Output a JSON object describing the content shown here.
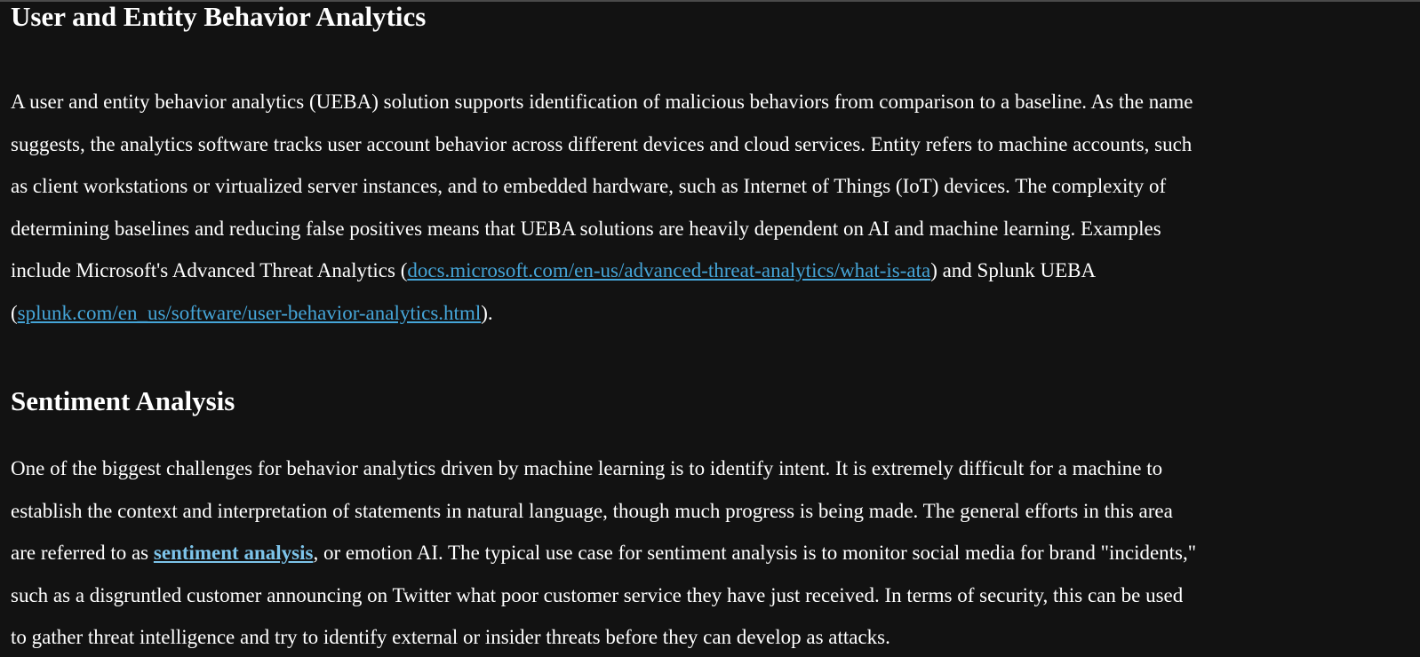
{
  "ueba": {
    "heading": "User and Entity Behavior Analytics",
    "lines": [
      "A user and entity behavior analytics (UEBA) solution supports identification of malicious behaviors from comparison to a baseline. As the name",
      "suggests, the analytics software tracks user account behavior across different devices and cloud services. Entity refers to machine accounts, such",
      "as client workstations or virtualized server instances, and to embedded hardware, such as Internet of Things (IoT) devices. The complexity of",
      "determining baselines and reducing false positives means that UEBA solutions are heavily dependent on AI and machine learning. Examples"
    ],
    "line5_pre": "include Microsoft's Advanced Threat Analytics (",
    "link_ata": "docs.microsoft.com/en-us/advanced-threat-analytics/what-is-ata",
    "line5_post": ") and Splunk UEBA",
    "line6_pre": "(",
    "link_splunk": "splunk.com/en_us/software/user-behavior-analytics.html",
    "line6_post": ")."
  },
  "sentiment": {
    "heading": "Sentiment Analysis",
    "lines": [
      "One of the biggest challenges for behavior analytics driven by machine learning is to identify intent. It is extremely difficult for a machine to",
      "establish the context and interpretation of statements in natural language, though much progress is being made. The general efforts in this area"
    ],
    "line3_pre": "are referred to as ",
    "term_link": "sentiment analysis",
    "line3_post": ", or emotion AI. The typical use case for sentiment analysis is to monitor social media for brand \"incidents,\"",
    "lines_after": [
      "such as a disgruntled customer announcing on Twitter what poor customer service they have just received. In terms of security, this can be used",
      "to gather threat intelligence and try to identify external or insider threats before they can develop as attacks."
    ]
  },
  "colors": {
    "background": "#121212",
    "text": "#ffffff",
    "link": "#45a5d8",
    "term_link": "#7dc4ea"
  }
}
